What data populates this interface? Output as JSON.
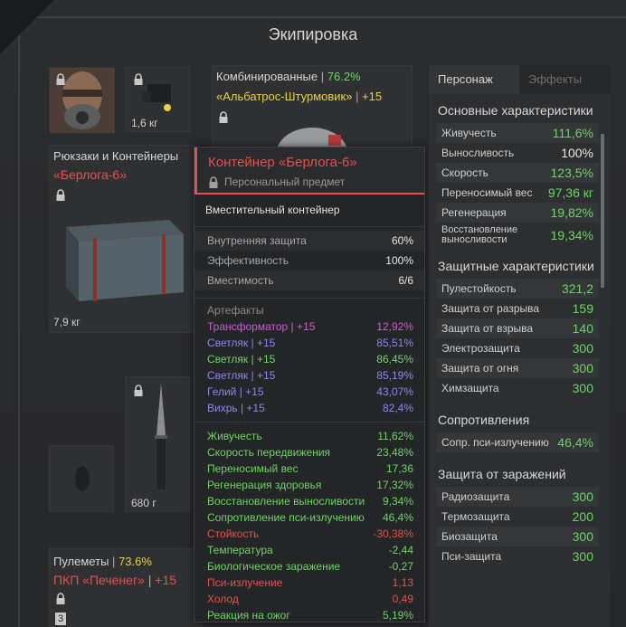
{
  "window_title": "Экипировка",
  "slots": {
    "device_weight": "1,6 кг",
    "armor_label": "Комбинированные",
    "armor_percent": "76.2%",
    "armor_name": "«Альбатрос-Штурмовик»",
    "armor_upgrade": "+15",
    "backpack_label": "Рюкзаки и Контейнеры",
    "backpack_name": "«Берлога-6»",
    "backpack_weight": "7,9 кг",
    "knife_weight": "680 г",
    "gun_label": "Пулеметы",
    "gun_percent": "73.6%",
    "gun_name": "ПКП «Печенег»",
    "gun_upgrade": "+15",
    "gun_slot_num": "3"
  },
  "tooltip": {
    "title": "Контейнер «Берлога-6»",
    "subtitle": "Персональный предмет",
    "description": "Вместительный контейнер",
    "props": [
      {
        "k": "Внутренняя защита",
        "v": "60%"
      },
      {
        "k": "Эффективность",
        "v": "100%"
      },
      {
        "k": "Вместимость",
        "v": "6/6"
      }
    ],
    "artifacts_title": "Артефакты",
    "artifacts": [
      {
        "name": "Трансформатор | +15",
        "v": "12,92%",
        "color": "#c85fd0"
      },
      {
        "name": "Светляк | +15",
        "v": "85,51%",
        "color": "#8f86f0"
      },
      {
        "name": "Светляк | +15",
        "v": "86,45%",
        "color": "#6fd467"
      },
      {
        "name": "Светляк | +15",
        "v": "85,19%",
        "color": "#8f86f0"
      },
      {
        "name": "Гелий | +15",
        "v": "43,07%",
        "color": "#8f86f0"
      },
      {
        "name": "Вихрь | +15",
        "v": "82,4%",
        "color": "#8f86f0"
      }
    ],
    "effects": [
      {
        "k": "Живучесть",
        "v": "11,62%",
        "color": "#6fd467"
      },
      {
        "k": "Скорость передвижения",
        "v": "23,48%",
        "color": "#6fd467"
      },
      {
        "k": "Переносимый вес",
        "v": "17,36",
        "color": "#6fd467"
      },
      {
        "k": "Регенерация здоровья",
        "v": "17,32%",
        "color": "#6fd467"
      },
      {
        "k": "Восстановление выносливости",
        "v": "9,34%",
        "color": "#6fd467"
      },
      {
        "k": "Сопротивление пси-излучению",
        "v": "46,4%",
        "color": "#6fd467"
      },
      {
        "k": "Стойкость",
        "v": "-30,38%",
        "color": "#e5504f"
      },
      {
        "k": "Температура",
        "v": "-2,44",
        "color": "#6fd467"
      },
      {
        "k": "Биологическое заражение",
        "v": "-0,27",
        "color": "#6fd467"
      },
      {
        "k": "Пси-излучение",
        "v": "1,13",
        "color": "#e5504f"
      },
      {
        "k": "Холод",
        "v": "0,49",
        "color": "#e5504f"
      },
      {
        "k": "Реакция на ожог",
        "v": "5,19%",
        "color": "#6fd467"
      }
    ]
  },
  "panel": {
    "tab_character": "Персонаж",
    "tab_effects": "Эффекты",
    "basic_title": "Основные характеристики",
    "basic": [
      {
        "k": "Живучесть",
        "v": "111,6%",
        "color": "#6fd467"
      },
      {
        "k": "Выносливость",
        "v": "100%",
        "color": "#e8e8e8"
      },
      {
        "k": "Скорость",
        "v": "123,5%",
        "color": "#6fd467"
      },
      {
        "k": "Переносимый вес",
        "v": "97,36 кг",
        "color": "#6fd467"
      },
      {
        "k": "Регенерация",
        "v": "19,82%",
        "color": "#6fd467"
      },
      {
        "k": "Восстановление выносливости",
        "v": "19,34%",
        "color": "#6fd467"
      }
    ],
    "protect_title": "Защитные характеристики",
    "protect": [
      {
        "k": "Пулестойкость",
        "v": "321,2"
      },
      {
        "k": "Защита от разрыва",
        "v": "159"
      },
      {
        "k": "Защита от взрыва",
        "v": "140"
      },
      {
        "k": "Электрозащита",
        "v": "300"
      },
      {
        "k": "Защита от огня",
        "v": "300"
      },
      {
        "k": "Химзащита",
        "v": "300"
      }
    ],
    "resist_title": "Сопротивления",
    "resist": [
      {
        "k": "Сопр. пси-излучению",
        "v": "46,4%"
      }
    ],
    "infect_title": "Защита от заражений",
    "infect": [
      {
        "k": "Радиозащита",
        "v": "300"
      },
      {
        "k": "Термозащита",
        "v": "200"
      },
      {
        "k": "Биозащита",
        "v": "300"
      },
      {
        "k": "Пси-защита",
        "v": "300"
      }
    ]
  }
}
